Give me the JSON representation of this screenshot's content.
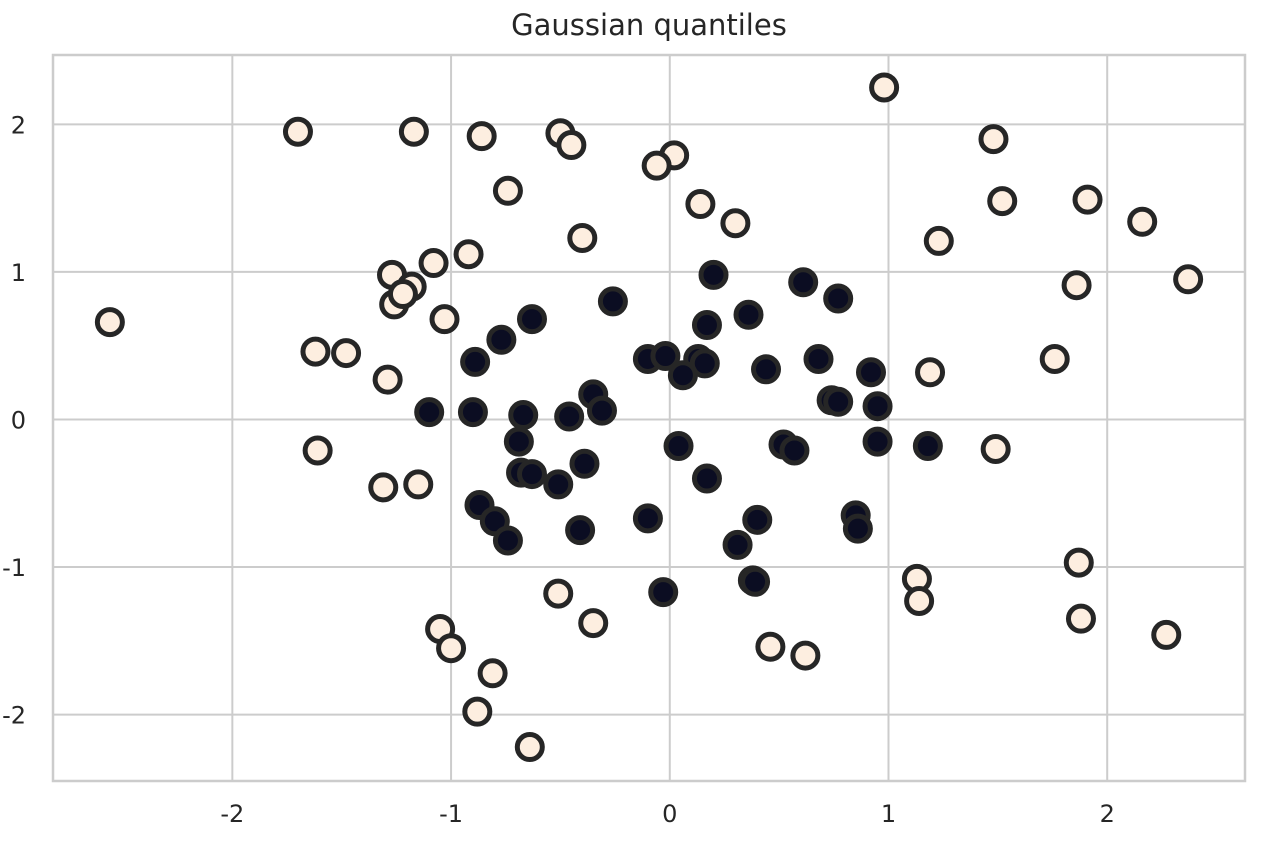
{
  "chart_data": {
    "type": "scatter",
    "title": "Gaussian quantiles",
    "xlabel": "",
    "ylabel": "",
    "xlim": [
      -2.82,
      2.63
    ],
    "ylim": [
      -2.45,
      2.47
    ],
    "xticks": [
      -2,
      -1,
      0,
      1,
      2
    ],
    "yticks": [
      -2,
      -1,
      0,
      1,
      2
    ],
    "grid": true,
    "legend": "none",
    "colors": {
      "class_0": "#fdeee0",
      "class_1": "#0b0d22",
      "edge": "#262626",
      "grid": "#cccccc",
      "axes_edge": "#cccccc",
      "background": "#ffffff"
    },
    "series": [
      {
        "class": 0,
        "color": "#fdeee0",
        "points": [
          [
            -2.56,
            0.66
          ],
          [
            -1.7,
            1.95
          ],
          [
            -1.17,
            1.95
          ],
          [
            -0.86,
            1.92
          ],
          [
            -0.5,
            1.94
          ],
          [
            -0.45,
            1.86
          ],
          [
            -0.74,
            1.55
          ],
          [
            0.02,
            1.79
          ],
          [
            -0.06,
            1.72
          ],
          [
            0.14,
            1.46
          ],
          [
            0.3,
            1.33
          ],
          [
            0.98,
            2.25
          ],
          [
            1.48,
            1.9
          ],
          [
            1.52,
            1.48
          ],
          [
            1.91,
            1.49
          ],
          [
            2.16,
            1.34
          ],
          [
            2.37,
            0.95
          ],
          [
            1.23,
            1.21
          ],
          [
            1.86,
            0.91
          ],
          [
            1.76,
            0.41
          ],
          [
            1.19,
            0.32
          ],
          [
            1.49,
            -0.2
          ],
          [
            -0.4,
            1.23
          ],
          [
            -0.92,
            1.12
          ],
          [
            -1.08,
            1.06
          ],
          [
            -1.27,
            0.98
          ],
          [
            -1.26,
            0.78
          ],
          [
            -1.18,
            0.9
          ],
          [
            -1.22,
            0.85
          ],
          [
            -1.03,
            0.68
          ],
          [
            -1.62,
            0.46
          ],
          [
            -1.48,
            0.45
          ],
          [
            -1.29,
            0.27
          ],
          [
            -1.61,
            -0.21
          ],
          [
            -1.31,
            -0.46
          ],
          [
            -1.15,
            -0.44
          ],
          [
            -0.51,
            -1.18
          ],
          [
            -0.35,
            -1.38
          ],
          [
            -1.05,
            -1.42
          ],
          [
            -1.0,
            -1.55
          ],
          [
            -0.81,
            -1.72
          ],
          [
            -0.88,
            -1.98
          ],
          [
            -0.64,
            -2.22
          ],
          [
            0.46,
            -1.54
          ],
          [
            0.62,
            -1.6
          ],
          [
            1.13,
            -1.08
          ],
          [
            1.14,
            -1.23
          ],
          [
            1.87,
            -0.97
          ],
          [
            1.88,
            -1.35
          ],
          [
            2.27,
            -1.46
          ]
        ]
      },
      {
        "class": 1,
        "color": "#0b0d22",
        "points": [
          [
            0.2,
            0.98
          ],
          [
            0.61,
            0.93
          ],
          [
            0.77,
            0.82
          ],
          [
            -0.26,
            0.8
          ],
          [
            0.36,
            0.71
          ],
          [
            0.17,
            0.64
          ],
          [
            -0.63,
            0.68
          ],
          [
            -0.77,
            0.54
          ],
          [
            -0.89,
            0.39
          ],
          [
            -0.1,
            0.41
          ],
          [
            -0.02,
            0.43
          ],
          [
            0.13,
            0.41
          ],
          [
            0.16,
            0.38
          ],
          [
            0.06,
            0.3
          ],
          [
            0.44,
            0.34
          ],
          [
            0.68,
            0.41
          ],
          [
            0.92,
            0.32
          ],
          [
            0.74,
            0.13
          ],
          [
            0.77,
            0.12
          ],
          [
            0.95,
            0.09
          ],
          [
            -1.1,
            0.05
          ],
          [
            -0.9,
            0.05
          ],
          [
            -0.67,
            0.03
          ],
          [
            -0.46,
            0.02
          ],
          [
            -0.35,
            0.17
          ],
          [
            -0.31,
            0.06
          ],
          [
            -0.69,
            -0.15
          ],
          [
            -0.68,
            -0.36
          ],
          [
            -0.63,
            -0.37
          ],
          [
            -0.39,
            -0.3
          ],
          [
            -0.51,
            -0.44
          ],
          [
            0.04,
            -0.18
          ],
          [
            0.17,
            -0.4
          ],
          [
            0.52,
            -0.17
          ],
          [
            0.57,
            -0.21
          ],
          [
            0.95,
            -0.15
          ],
          [
            1.18,
            -0.18
          ],
          [
            -0.87,
            -0.58
          ],
          [
            -0.8,
            -0.69
          ],
          [
            -0.74,
            -0.82
          ],
          [
            -0.41,
            -0.75
          ],
          [
            -0.1,
            -0.67
          ],
          [
            0.4,
            -0.68
          ],
          [
            0.31,
            -0.85
          ],
          [
            0.85,
            -0.65
          ],
          [
            0.86,
            -0.74
          ],
          [
            -0.03,
            -1.17
          ],
          [
            0.38,
            -1.09
          ],
          [
            0.39,
            -1.1
          ]
        ]
      }
    ]
  }
}
